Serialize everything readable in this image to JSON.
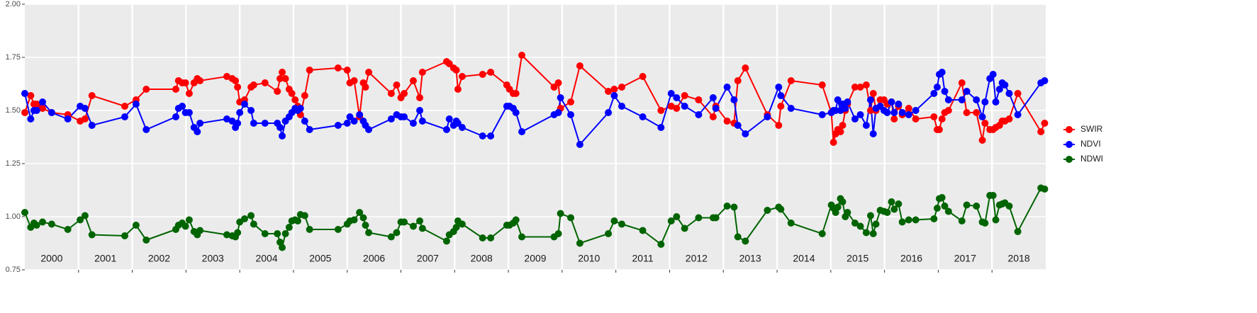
{
  "chart_data": {
    "type": "line",
    "xlim": [
      2000,
      2019
    ],
    "ylim": [
      0.75,
      2.0
    ],
    "yticks": [
      {
        "value": 0.75,
        "label": "0.75"
      },
      {
        "value": 1.0,
        "label": "1.00"
      },
      {
        "value": 1.25,
        "label": "1.25"
      },
      {
        "value": 1.5,
        "label": "1.50"
      },
      {
        "value": 1.75,
        "label": "1.75"
      },
      {
        "value": 2.0,
        "label": "2.00"
      }
    ],
    "xticks": [
      {
        "value": 2000.5,
        "label": "2000"
      },
      {
        "value": 2001.5,
        "label": "2001"
      },
      {
        "value": 2002.5,
        "label": "2002"
      },
      {
        "value": 2003.5,
        "label": "2003"
      },
      {
        "value": 2004.5,
        "label": "2004"
      },
      {
        "value": 2005.5,
        "label": "2005"
      },
      {
        "value": 2006.5,
        "label": "2006"
      },
      {
        "value": 2007.5,
        "label": "2007"
      },
      {
        "value": 2008.5,
        "label": "2008"
      },
      {
        "value": 2009.5,
        "label": "2009"
      },
      {
        "value": 2010.5,
        "label": "2010"
      },
      {
        "value": 2011.5,
        "label": "2011"
      },
      {
        "value": 2012.5,
        "label": "2012"
      },
      {
        "value": 2013.5,
        "label": "2013"
      },
      {
        "value": 2014.5,
        "label": "2014"
      },
      {
        "value": 2015.5,
        "label": "2015"
      },
      {
        "value": 2016.5,
        "label": "2016"
      },
      {
        "value": 2017.5,
        "label": "2017"
      },
      {
        "value": 2018.5,
        "label": "2018"
      }
    ],
    "year_boundaries": [
      2001,
      2002,
      2003,
      2004,
      2005,
      2006,
      2007,
      2008,
      2009,
      2010,
      2011,
      2012,
      2013,
      2014,
      2015,
      2016,
      2017,
      2018
    ],
    "grid": true,
    "legend": "right",
    "x": [
      2000.0,
      2000.11,
      2000.17,
      2000.22,
      2000.33,
      2000.5,
      2000.8,
      2001.03,
      2001.12,
      2001.25,
      2001.86,
      2002.07,
      2002.26,
      2002.81,
      2002.86,
      2002.93,
      2002.99,
      2003.06,
      2003.15,
      2003.21,
      2003.26,
      2003.76,
      2003.86,
      2003.92,
      2003.96,
      2004.0,
      2004.09,
      2004.21,
      2004.26,
      2004.47,
      2004.7,
      2004.75,
      2004.79,
      2004.85,
      2004.92,
      2004.97,
      2005.03,
      2005.08,
      2005.13,
      2005.21,
      2005.3,
      2005.83,
      2006.0,
      2006.05,
      2006.13,
      2006.23,
      2006.3,
      2006.34,
      2006.4,
      2006.82,
      2006.92,
      2007.0,
      2007.06,
      2007.23,
      2007.35,
      2007.4,
      2007.85,
      2007.9,
      2007.98,
      2008.03,
      2008.06,
      2008.14,
      2008.52,
      2008.67,
      2008.97,
      2009.02,
      2009.09,
      2009.14,
      2009.25,
      2009.85,
      2009.93,
      2009.97,
      2010.16,
      2010.33,
      2010.86,
      2010.97,
      2011.11,
      2011.5,
      2011.84,
      2012.03,
      2012.13,
      2012.28,
      2012.54,
      2012.81,
      2012.86,
      2013.07,
      2013.2,
      2013.27,
      2013.41,
      2013.82,
      2014.03,
      2014.07,
      2014.26,
      2014.84,
      2015.01,
      2015.05,
      2015.09,
      2015.13,
      2015.18,
      2015.22,
      2015.27,
      2015.31,
      2015.45,
      2015.55,
      2015.66,
      2015.74,
      2015.79,
      2015.84,
      2015.92,
      2015.99,
      2016.05,
      2016.13,
      2016.18,
      2016.26,
      2016.33,
      2016.45,
      2016.58,
      2016.92,
      2016.98,
      2017.02,
      2017.07,
      2017.12,
      2017.19,
      2017.44,
      2017.53,
      2017.71,
      2017.82,
      2017.87,
      2017.96,
      2018.02,
      2018.07,
      2018.14,
      2018.19,
      2018.24,
      2018.32,
      2018.48,
      2018.91,
      2018.98
    ],
    "series": [
      {
        "name": "SWIR",
        "color": "#ff0000",
        "values": [
          1.49,
          1.57,
          1.53,
          1.53,
          1.51,
          1.49,
          1.48,
          1.45,
          1.46,
          1.57,
          1.52,
          1.55,
          1.6,
          1.6,
          1.64,
          1.63,
          1.63,
          1.58,
          1.63,
          1.65,
          1.64,
          1.66,
          1.65,
          1.64,
          1.61,
          1.54,
          1.55,
          1.61,
          1.62,
          1.63,
          1.59,
          1.65,
          1.68,
          1.65,
          1.6,
          1.58,
          1.55,
          1.52,
          1.48,
          1.57,
          1.69,
          1.7,
          1.69,
          1.63,
          1.64,
          1.47,
          1.63,
          1.61,
          1.68,
          1.58,
          1.62,
          1.56,
          1.58,
          1.64,
          1.56,
          1.68,
          1.73,
          1.72,
          1.7,
          1.69,
          1.6,
          1.66,
          1.67,
          1.68,
          1.62,
          1.6,
          1.58,
          1.58,
          1.76,
          1.61,
          1.63,
          1.51,
          1.54,
          1.71,
          1.59,
          1.6,
          1.61,
          1.66,
          1.5,
          1.52,
          1.51,
          1.57,
          1.55,
          1.47,
          1.52,
          1.45,
          1.44,
          1.64,
          1.7,
          1.48,
          1.43,
          1.52,
          1.64,
          1.62,
          1.49,
          1.35,
          1.39,
          1.41,
          1.4,
          1.43,
          1.5,
          1.53,
          1.61,
          1.61,
          1.62,
          1.5,
          1.58,
          1.5,
          1.55,
          1.55,
          1.53,
          1.54,
          1.46,
          1.52,
          1.48,
          1.51,
          1.46,
          1.47,
          1.41,
          1.41,
          1.46,
          1.49,
          1.5,
          1.63,
          1.49,
          1.49,
          1.36,
          1.44,
          1.41,
          1.41,
          1.42,
          1.43,
          1.45,
          1.45,
          1.46,
          1.58,
          1.4,
          1.44
        ]
      },
      {
        "name": "NDVI",
        "color": "#0000ff",
        "values": [
          1.58,
          1.46,
          1.5,
          1.5,
          1.54,
          1.49,
          1.46,
          1.52,
          1.51,
          1.43,
          1.47,
          1.53,
          1.41,
          1.47,
          1.51,
          1.52,
          1.49,
          1.49,
          1.42,
          1.4,
          1.44,
          1.46,
          1.45,
          1.42,
          1.44,
          1.49,
          1.53,
          1.5,
          1.44,
          1.44,
          1.44,
          1.42,
          1.38,
          1.45,
          1.47,
          1.49,
          1.51,
          1.5,
          1.51,
          1.45,
          1.41,
          1.43,
          1.44,
          1.47,
          1.45,
          1.48,
          1.45,
          1.43,
          1.41,
          1.46,
          1.48,
          1.47,
          1.47,
          1.44,
          1.5,
          1.45,
          1.41,
          1.46,
          1.43,
          1.45,
          1.44,
          1.42,
          1.38,
          1.38,
          1.52,
          1.52,
          1.51,
          1.49,
          1.4,
          1.48,
          1.49,
          1.56,
          1.48,
          1.34,
          1.49,
          1.57,
          1.52,
          1.47,
          1.42,
          1.58,
          1.56,
          1.52,
          1.48,
          1.56,
          1.51,
          1.61,
          1.55,
          1.43,
          1.39,
          1.47,
          1.61,
          1.57,
          1.51,
          1.48,
          1.49,
          1.5,
          1.5,
          1.55,
          1.5,
          1.53,
          1.51,
          1.54,
          1.46,
          1.48,
          1.43,
          1.55,
          1.39,
          1.51,
          1.52,
          1.5,
          1.49,
          1.54,
          1.49,
          1.53,
          1.49,
          1.48,
          1.5,
          1.58,
          1.61,
          1.67,
          1.68,
          1.59,
          1.55,
          1.55,
          1.59,
          1.55,
          1.47,
          1.54,
          1.65,
          1.67,
          1.54,
          1.6,
          1.63,
          1.62,
          1.58,
          1.48,
          1.63,
          1.64
        ]
      },
      {
        "name": "NDWI",
        "color": "#006400",
        "values": [
          1.02,
          0.95,
          0.97,
          0.96,
          0.975,
          0.965,
          0.94,
          0.985,
          1.005,
          0.915,
          0.91,
          0.96,
          0.89,
          0.94,
          0.96,
          0.97,
          0.955,
          0.985,
          0.93,
          0.915,
          0.935,
          0.915,
          0.91,
          0.905,
          0.925,
          0.975,
          0.99,
          1.005,
          0.965,
          0.92,
          0.92,
          0.88,
          0.855,
          0.92,
          0.95,
          0.98,
          0.985,
          0.98,
          1.01,
          1.005,
          0.94,
          0.94,
          0.965,
          0.98,
          0.985,
          1.02,
          0.995,
          0.96,
          0.925,
          0.905,
          0.925,
          0.975,
          0.975,
          0.955,
          0.98,
          0.945,
          0.885,
          0.915,
          0.93,
          0.95,
          0.98,
          0.965,
          0.9,
          0.9,
          0.96,
          0.96,
          0.97,
          0.985,
          0.905,
          0.905,
          0.92,
          1.015,
          0.995,
          0.875,
          0.92,
          0.98,
          0.965,
          0.935,
          0.87,
          0.98,
          1.0,
          0.945,
          0.995,
          0.995,
          0.995,
          1.05,
          1.045,
          0.905,
          0.885,
          1.03,
          1.045,
          1.035,
          0.97,
          0.92,
          1.055,
          1.04,
          1.02,
          1.045,
          1.085,
          1.07,
          1.0,
          1.02,
          0.97,
          0.955,
          0.925,
          1.005,
          0.92,
          0.965,
          1.03,
          1.025,
          1.02,
          1.07,
          1.035,
          1.06,
          0.975,
          0.985,
          0.985,
          0.99,
          1.04,
          1.085,
          1.09,
          1.05,
          1.025,
          0.98,
          1.055,
          1.05,
          0.975,
          0.97,
          1.1,
          1.1,
          0.985,
          1.055,
          1.06,
          1.065,
          1.05,
          0.93,
          1.135,
          1.13
        ]
      }
    ]
  }
}
